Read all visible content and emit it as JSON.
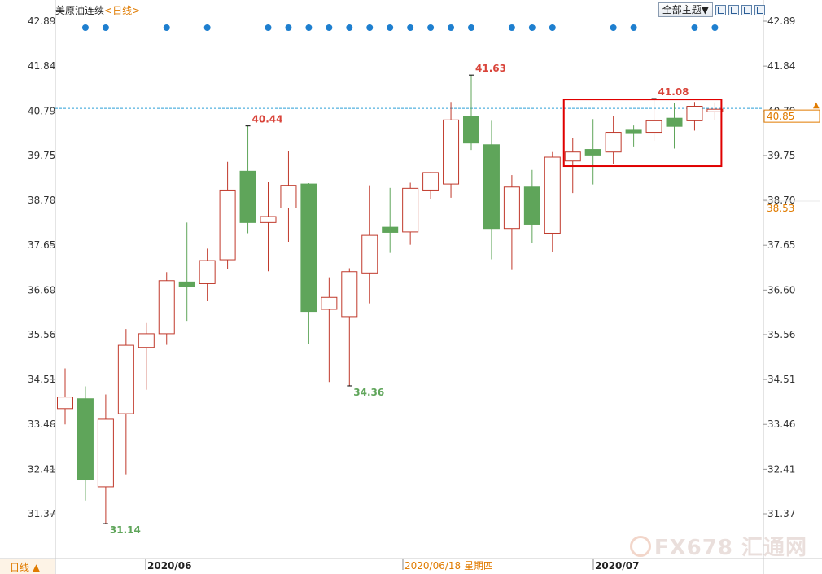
{
  "header": {
    "instrument": "美原油连续",
    "period": "<日线>",
    "theme_button": "全部主题▼"
  },
  "footer": {
    "period_toggle": "日线 ▲",
    "date_labels": [
      "2020/06",
      "2020/06/18 星期四",
      "2020/07"
    ]
  },
  "watermark": "FX678 汇通网",
  "colors": {
    "up": "#c0392b",
    "down": "#5fa55a",
    "grid_line": "#2a9fd6",
    "marker_dot": "#1e7fcf",
    "highlight_box": "#e00000",
    "price_tag": "#e07b00"
  },
  "chart_data": {
    "type": "candlestick",
    "y_ticks": [
      "42.89",
      "41.84",
      "40.79",
      "39.75",
      "38.70",
      "37.65",
      "36.60",
      "35.56",
      "34.51",
      "33.46",
      "32.41",
      "31.37"
    ],
    "ylim": [
      30.8,
      43.3
    ],
    "reference_line": 40.85,
    "price_labels": {
      "current": "40.85",
      "secondary": "38.53"
    },
    "extreme_labels": [
      {
        "index": 2,
        "value": 31.14,
        "text": "31.14",
        "kind": "low"
      },
      {
        "index": 9,
        "value": 40.44,
        "text": "40.44",
        "kind": "high"
      },
      {
        "index": 14,
        "value": 34.36,
        "text": "34.36",
        "kind": "low"
      },
      {
        "index": 20,
        "value": 41.63,
        "text": "41.63",
        "kind": "high"
      },
      {
        "index": 29,
        "value": 41.08,
        "text": "41.08",
        "kind": "high"
      }
    ],
    "candles": [
      {
        "o": 33.83,
        "h": 34.77,
        "l": 33.46,
        "c": 34.1
      },
      {
        "o": 34.06,
        "h": 34.35,
        "l": 31.68,
        "c": 32.16
      },
      {
        "o": 32.0,
        "h": 34.16,
        "l": 31.14,
        "c": 33.58
      },
      {
        "o": 33.71,
        "h": 35.69,
        "l": 32.29,
        "c": 35.31
      },
      {
        "o": 35.26,
        "h": 35.83,
        "l": 34.27,
        "c": 35.58
      },
      {
        "o": 35.58,
        "h": 37.02,
        "l": 35.32,
        "c": 36.82
      },
      {
        "o": 36.79,
        "h": 38.18,
        "l": 35.88,
        "c": 36.68
      },
      {
        "o": 36.75,
        "h": 37.57,
        "l": 36.34,
        "c": 37.29
      },
      {
        "o": 37.31,
        "h": 39.6,
        "l": 37.09,
        "c": 38.94
      },
      {
        "o": 39.38,
        "h": 40.44,
        "l": 37.93,
        "c": 38.18
      },
      {
        "o": 38.18,
        "h": 39.13,
        "l": 37.04,
        "c": 38.32
      },
      {
        "o": 38.52,
        "h": 39.85,
        "l": 37.73,
        "c": 39.05
      },
      {
        "o": 39.08,
        "h": 39.1,
        "l": 35.34,
        "c": 36.1
      },
      {
        "o": 36.15,
        "h": 36.9,
        "l": 34.45,
        "c": 36.43
      },
      {
        "o": 35.98,
        "h": 37.11,
        "l": 34.36,
        "c": 37.03
      },
      {
        "o": 37.0,
        "h": 39.05,
        "l": 36.29,
        "c": 37.88
      },
      {
        "o": 38.07,
        "h": 38.99,
        "l": 37.47,
        "c": 37.95
      },
      {
        "o": 37.96,
        "h": 39.11,
        "l": 37.66,
        "c": 38.98
      },
      {
        "o": 38.94,
        "h": 39.36,
        "l": 38.73,
        "c": 39.35
      },
      {
        "o": 39.08,
        "h": 41.0,
        "l": 38.76,
        "c": 40.58
      },
      {
        "o": 40.66,
        "h": 41.63,
        "l": 39.88,
        "c": 40.04
      },
      {
        "o": 40.0,
        "h": 40.56,
        "l": 37.32,
        "c": 38.04
      },
      {
        "o": 38.04,
        "h": 39.29,
        "l": 37.07,
        "c": 39.01
      },
      {
        "o": 39.01,
        "h": 39.41,
        "l": 37.71,
        "c": 38.14
      },
      {
        "o": 37.93,
        "h": 39.83,
        "l": 37.49,
        "c": 39.71
      },
      {
        "o": 39.62,
        "h": 40.16,
        "l": 38.87,
        "c": 39.83
      },
      {
        "o": 39.89,
        "h": 40.6,
        "l": 39.07,
        "c": 39.76
      },
      {
        "o": 39.83,
        "h": 40.67,
        "l": 39.54,
        "c": 40.29
      },
      {
        "o": 40.34,
        "h": 40.45,
        "l": 39.96,
        "c": 40.28
      },
      {
        "o": 40.29,
        "h": 41.08,
        "l": 40.09,
        "c": 40.56
      },
      {
        "o": 40.62,
        "h": 40.97,
        "l": 39.91,
        "c": 40.43
      },
      {
        "o": 40.56,
        "h": 41.0,
        "l": 40.33,
        "c": 40.9
      },
      {
        "o": 40.77,
        "h": 40.99,
        "l": 40.57,
        "c": 40.83
      }
    ],
    "marker_indices": [
      1,
      2,
      5,
      7,
      10,
      11,
      12,
      13,
      14,
      15,
      16,
      17,
      18,
      19,
      20,
      22,
      23,
      24,
      27,
      28,
      31,
      32
    ]
  }
}
